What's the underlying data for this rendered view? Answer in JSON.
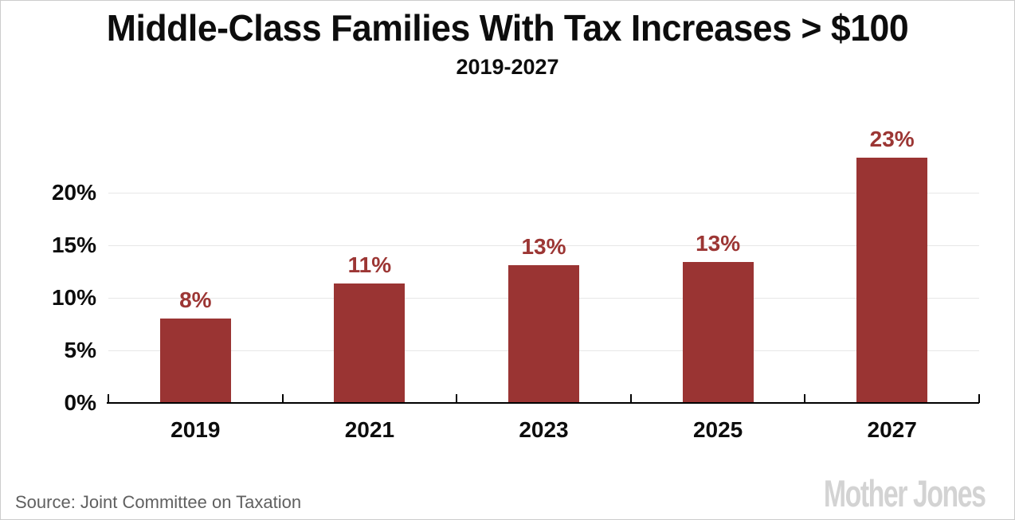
{
  "title": "Middle-Class Families With Tax Increases > $100",
  "subtitle": "2019-2027",
  "source_note": "Source: Joint Committee on Taxation",
  "logo_text": "Mother Jones",
  "colors": {
    "bar": "#9a3433",
    "value_label": "#9c3634",
    "gridline": "#e7e7e7",
    "axis": "#000000",
    "text": "#111111",
    "source_text": "#606060",
    "logo_gray": "#d3d3d3",
    "frame_border": "#cccccc",
    "background": "#ffffff"
  },
  "chart_data": {
    "type": "bar",
    "title": "Middle-Class Families With Tax Increases > $100",
    "subtitle": "2019-2027",
    "categories": [
      "2019",
      "2021",
      "2023",
      "2025",
      "2027"
    ],
    "values": [
      8,
      11.4,
      13.1,
      13.4,
      23.3
    ],
    "value_labels": [
      "8%",
      "11%",
      "13%",
      "13%",
      "23%"
    ],
    "ytick_values": [
      0,
      5,
      10,
      15,
      20
    ],
    "ytick_labels": [
      "0%",
      "5%",
      "10%",
      "15%",
      "20%"
    ],
    "gridline_values": [
      5,
      10,
      15,
      20
    ],
    "ylim": [
      0,
      25
    ],
    "xlabel": "",
    "ylabel": "",
    "grid": "horizontal",
    "legend": "none",
    "bar_color": "#9a3433",
    "source": "Source: Joint Committee on Taxation"
  }
}
